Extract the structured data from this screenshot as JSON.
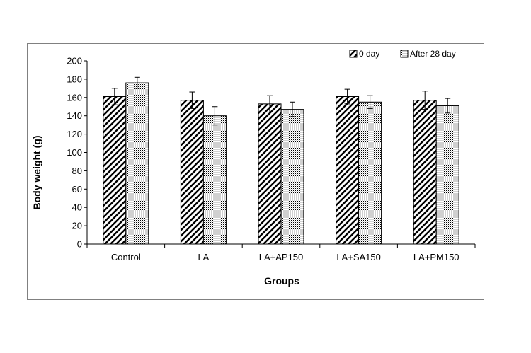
{
  "chart_data": {
    "type": "bar",
    "title": "",
    "xlabel": "Groups",
    "ylabel": "Body weight (g)",
    "ylim": [
      0,
      200
    ],
    "yticks": [
      0,
      20,
      40,
      60,
      80,
      100,
      120,
      140,
      160,
      180,
      200
    ],
    "categories": [
      "Control",
      "LA",
      "LA+AP150",
      "LA+SA150",
      "LA+PM150"
    ],
    "series": [
      {
        "name": "0 day",
        "pattern": "diagonal-stripes",
        "values": [
          161,
          157,
          153,
          161,
          157
        ],
        "errors": [
          9,
          9,
          9,
          8,
          10
        ]
      },
      {
        "name": "After 28 day",
        "pattern": "dots",
        "values": [
          176,
          140,
          147,
          155,
          151
        ],
        "errors": [
          6,
          10,
          8,
          7,
          8
        ]
      }
    ],
    "error_bars": true,
    "grid": false,
    "legend_position": "top-right",
    "colors": {
      "bar_outline": "#000000",
      "frame": "#808080"
    }
  }
}
